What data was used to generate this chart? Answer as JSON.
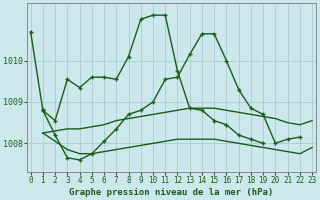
{
  "title": "Graphe pression niveau de la mer (hPa)",
  "bg_color": "#cce8ed",
  "grid_color": "#aacccc",
  "line_color": "#1a5c1a",
  "xlim": [
    -0.3,
    23.3
  ],
  "ylim": [
    1007.3,
    1011.4
  ],
  "yticks": [
    1008,
    1009,
    1010
  ],
  "xticks": [
    0,
    1,
    2,
    3,
    4,
    5,
    6,
    7,
    8,
    9,
    10,
    11,
    12,
    13,
    14,
    15,
    16,
    17,
    18,
    19,
    20,
    21,
    22,
    23
  ],
  "series": {
    "line_main": {
      "segments": [
        {
          "x": [
            0,
            1
          ],
          "y": [
            1010.7,
            1008.8
          ]
        },
        {
          "x": [
            1,
            2,
            3,
            4,
            5,
            6,
            7,
            8,
            9,
            10,
            11,
            12,
            13,
            14,
            15,
            16,
            17,
            18,
            19
          ],
          "y": [
            1008.8,
            1008.55,
            1009.55,
            1009.35,
            1009.6,
            1009.6,
            1009.55,
            1010.1,
            1011.0,
            1011.1,
            1011.1,
            1009.75,
            1008.85,
            1008.8,
            1008.55,
            1008.45,
            1008.2,
            1008.1,
            1008.0
          ]
        }
      ],
      "markers": true
    },
    "line_zigzag": {
      "x": [
        1,
        2,
        3,
        4,
        5,
        6,
        7,
        8,
        9,
        10,
        11,
        12,
        13,
        14,
        15,
        16,
        17,
        18,
        19,
        20,
        21,
        22
      ],
      "y": [
        1008.8,
        1008.2,
        1007.65,
        1007.6,
        1007.75,
        1008.05,
        1008.35,
        1008.7,
        1008.8,
        1009.0,
        1009.55,
        1009.6,
        1010.15,
        1010.65,
        1010.65,
        1010.0,
        1009.3,
        1008.85,
        1008.7,
        1008.0,
        1008.1,
        1008.15
      ],
      "markers": true
    },
    "band_upper": {
      "x": [
        1,
        2,
        3,
        4,
        5,
        6,
        7,
        8,
        9,
        10,
        11,
        12,
        13,
        14,
        15,
        16,
        17,
        18,
        19,
        20,
        21,
        22,
        23
      ],
      "y": [
        1008.25,
        1008.3,
        1008.35,
        1008.35,
        1008.4,
        1008.45,
        1008.55,
        1008.6,
        1008.65,
        1008.7,
        1008.75,
        1008.8,
        1008.85,
        1008.85,
        1008.85,
        1008.8,
        1008.75,
        1008.7,
        1008.65,
        1008.6,
        1008.5,
        1008.45,
        1008.55
      ],
      "markers": false
    },
    "band_lower": {
      "x": [
        1,
        2,
        3,
        4,
        5,
        6,
        7,
        8,
        9,
        10,
        11,
        12,
        13,
        14,
        15,
        16,
        17,
        18,
        19,
        20,
        21,
        22,
        23
      ],
      "y": [
        1008.25,
        1008.05,
        1007.85,
        1007.75,
        1007.75,
        1007.8,
        1007.85,
        1007.9,
        1007.95,
        1008.0,
        1008.05,
        1008.1,
        1008.1,
        1008.1,
        1008.1,
        1008.05,
        1008.0,
        1007.95,
        1007.9,
        1007.85,
        1007.8,
        1007.75,
        1007.9
      ],
      "markers": false
    }
  },
  "linewidth": 1.0,
  "markersize": 3.5,
  "tick_fontsize": 5.5,
  "xlabel_fontsize": 6.5
}
